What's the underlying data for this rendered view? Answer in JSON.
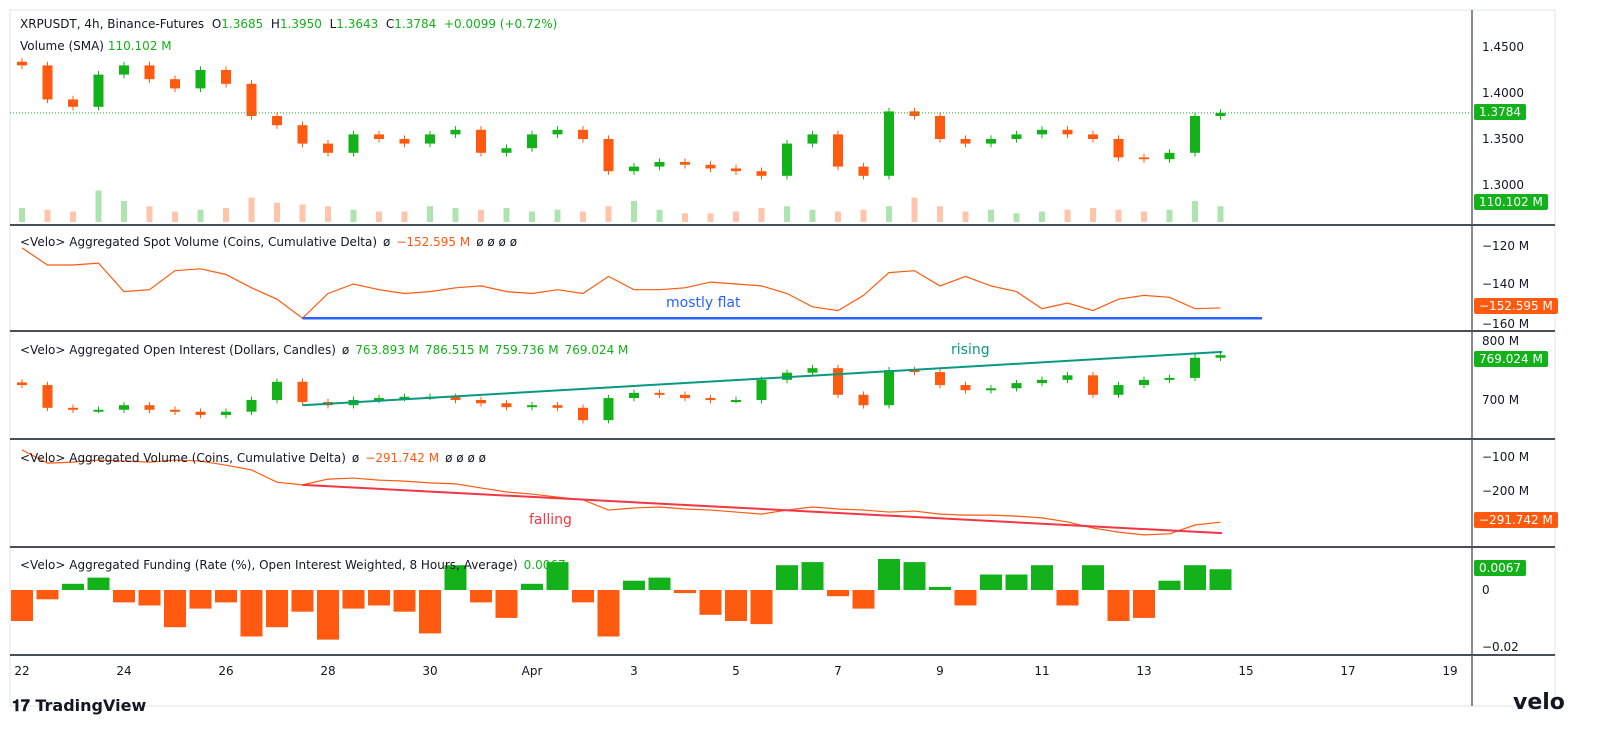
{
  "header": {
    "symbol": "XRPUSDT, 4h, Binance-Futures",
    "o_label": "O",
    "o": "1.3685",
    "h_label": "H",
    "h": "1.3950",
    "l_label": "L",
    "l": "1.3643",
    "c_label": "C",
    "c": "1.3784",
    "change": "+0.0099 (+0.72%)",
    "volume_label": "Volume (SMA)",
    "volume_value": "110.102 M"
  },
  "panes": {
    "spot": {
      "title": "<Velo> Aggregated Spot Volume (Coins, Cumulative Delta)",
      "null1": "ø",
      "value": "−152.595 M",
      "nulls": "ø  ø  ø  ø",
      "annotation": "mostly flat"
    },
    "oi": {
      "title": "<Velo> Aggregated Open Interest (Dollars, Candles)",
      "null1": "ø",
      "o": "763.893 M",
      "h": "786.515 M",
      "l": "759.736 M",
      "c": "769.024 M",
      "annotation": "rising"
    },
    "cvd": {
      "title": "<Velo> Aggregated Volume (Coins, Cumulative Delta)",
      "null1": "ø",
      "value": "−291.742 M",
      "nulls": "ø  ø  ø  ø",
      "annotation": "falling"
    },
    "funding": {
      "title": "<Velo> Aggregated Funding (Rate (%), Open Interest Weighted, 8 Hours, Average)",
      "value": "0.0067"
    }
  },
  "axes": {
    "price": {
      "ticks": [
        "1.4500",
        "1.4000",
        "1.3500",
        "1.3000"
      ],
      "last": "1.3784",
      "volume": "110.102 M"
    },
    "spot": {
      "ticks": [
        "−120 M",
        "−140 M",
        "−160 M"
      ],
      "last": "−152.595 M"
    },
    "oi": {
      "ticks": [
        "800 M",
        "700 M"
      ],
      "last": "769.024 M"
    },
    "cvd": {
      "ticks": [
        "−100 M",
        "−200 M"
      ],
      "last": "−291.742 M"
    },
    "funding": {
      "ticks": [
        "0",
        "−0.02"
      ],
      "last": "0.0067"
    },
    "time": [
      "22",
      "24",
      "26",
      "28",
      "30",
      "Apr",
      "3",
      "5",
      "7",
      "9",
      "11",
      "13",
      "15",
      "17",
      "19"
    ]
  },
  "footer": {
    "brand": "TradingView",
    "velo": "velo"
  },
  "colors": {
    "up": "#13b21a",
    "down": "#ff5a0f",
    "flat_line": "#2962ff",
    "rising_line": "#089981",
    "falling_line": "#f23645"
  },
  "chart_data": {
    "type": "candlestick-multi-pane",
    "x": [
      "Mar 22 00:00",
      "Mar 22 12:00",
      "Mar 23 00:00",
      "Mar 23 12:00",
      "Mar 24 00:00",
      "Mar 24 12:00",
      "Mar 25 00:00",
      "Mar 25 12:00",
      "Mar 26 00:00",
      "Mar 26 12:00",
      "Mar 27 00:00",
      "Mar 27 12:00",
      "Mar 28 00:00",
      "Mar 28 12:00",
      "Mar 29 00:00",
      "Mar 29 12:00",
      "Mar 30 00:00",
      "Mar 30 12:00",
      "Mar 31 00:00",
      "Mar 31 12:00",
      "Apr 1 00:00",
      "Apr 1 12:00",
      "Apr 2 00:00",
      "Apr 2 12:00",
      "Apr 3 00:00",
      "Apr 3 12:00",
      "Apr 4 00:00",
      "Apr 4 12:00",
      "Apr 5 00:00",
      "Apr 5 12:00",
      "Apr 6 00:00",
      "Apr 6 12:00",
      "Apr 7 00:00",
      "Apr 7 12:00",
      "Apr 8 00:00",
      "Apr 8 12:00",
      "Apr 9 00:00",
      "Apr 9 12:00",
      "Apr 10 00:00",
      "Apr 10 12:00",
      "Apr 11 00:00",
      "Apr 11 12:00",
      "Apr 12 00:00",
      "Apr 12 12:00",
      "Apr 13 00:00",
      "Apr 13 12:00",
      "Apr 14 00:00",
      "Apr 14 12:00"
    ],
    "price_close": [
      1.43,
      1.393,
      1.385,
      1.42,
      1.43,
      1.415,
      1.405,
      1.425,
      1.41,
      1.375,
      1.365,
      1.345,
      1.335,
      1.355,
      1.35,
      1.345,
      1.355,
      1.36,
      1.335,
      1.34,
      1.355,
      1.36,
      1.35,
      1.315,
      1.32,
      1.325,
      1.322,
      1.318,
      1.315,
      1.31,
      1.345,
      1.355,
      1.32,
      1.31,
      1.38,
      1.375,
      1.35,
      1.345,
      1.35,
      1.355,
      1.36,
      1.355,
      1.35,
      1.33,
      1.328,
      1.335,
      1.375,
      1.3784
    ],
    "price_ylim": [
      1.29,
      1.46
    ],
    "volume_m": [
      40,
      35,
      30,
      90,
      60,
      45,
      30,
      35,
      40,
      70,
      55,
      50,
      45,
      35,
      30,
      30,
      45,
      40,
      35,
      40,
      30,
      35,
      30,
      45,
      60,
      35,
      25,
      25,
      30,
      40,
      45,
      35,
      30,
      35,
      45,
      70,
      45,
      30,
      35,
      25,
      30,
      35,
      40,
      35,
      30,
      35,
      60,
      45
    ],
    "spot_cvd_m": [
      -121,
      -130,
      -130,
      -129,
      -144,
      -143,
      -133,
      -132,
      -135,
      -142,
      -148,
      -158,
      -145,
      -140,
      -143,
      -145,
      -144,
      -142,
      -141,
      -144,
      -145,
      -143,
      -145,
      -136,
      -143,
      -143,
      -142,
      -139,
      -140,
      -141,
      -145,
      -152,
      -154,
      -146,
      -134,
      -133,
      -141,
      -136,
      -141,
      -144,
      -153,
      -150,
      -154,
      -148,
      -146,
      -147,
      -153,
      -152.595
    ],
    "spot_flat_level_m": -158,
    "oi_close_m": [
      723,
      688,
      685,
      685,
      692,
      685,
      682,
      677,
      682,
      700,
      728,
      697,
      692,
      700,
      703,
      705,
      705,
      700,
      695,
      689,
      692,
      688,
      669,
      703,
      711,
      708,
      703,
      700,
      700,
      731,
      742,
      749,
      708,
      692,
      746,
      743,
      723,
      715,
      718,
      726,
      731,
      738,
      708,
      723,
      731,
      734,
      765,
      769.024
    ],
    "oi_trend_m": [
      692,
      774
    ],
    "cvd_m": [
      -79,
      -118,
      -115,
      -109,
      -112,
      -115,
      -109,
      -112,
      -124,
      -138,
      -174,
      -182,
      -165,
      -162,
      -168,
      -171,
      -176,
      -179,
      -191,
      -203,
      -209,
      -218,
      -226,
      -256,
      -250,
      -247,
      -253,
      -256,
      -262,
      -268,
      -256,
      -247,
      -253,
      -256,
      -262,
      -259,
      -268,
      -271,
      -271,
      -274,
      -279,
      -291,
      -309,
      -321,
      -329,
      -326,
      -300,
      -291.742
    ],
    "cvd_trend_m": [
      -182,
      -324
    ],
    "funding_pct": [
      -0.01,
      -0.003,
      0.002,
      0.004,
      -0.004,
      -0.005,
      -0.012,
      -0.006,
      -0.004,
      -0.015,
      -0.012,
      -0.007,
      -0.016,
      -0.006,
      -0.005,
      -0.007,
      -0.014,
      0.008,
      -0.004,
      -0.009,
      0.002,
      0.009,
      -0.004,
      -0.015,
      0.003,
      0.004,
      -0.001,
      -0.008,
      -0.01,
      -0.011,
      0.008,
      0.009,
      -0.002,
      -0.006,
      0.01,
      0.009,
      0.001,
      -0.005,
      0.005,
      0.005,
      0.008,
      -0.005,
      0.008,
      -0.01,
      -0.009,
      0.003,
      0.008,
      0.0067
    ]
  }
}
